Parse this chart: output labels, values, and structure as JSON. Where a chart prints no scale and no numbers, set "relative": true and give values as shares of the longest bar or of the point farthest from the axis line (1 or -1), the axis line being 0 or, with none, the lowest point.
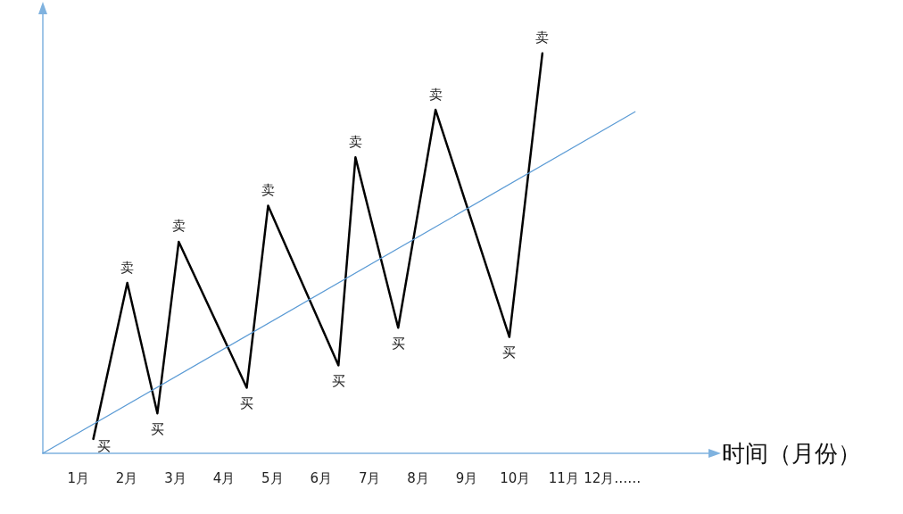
{
  "chart_data": {
    "type": "line",
    "relative": true,
    "xlabel": "时间（月份）",
    "xlim": [
      0.27,
      14
    ],
    "xticks": [
      {
        "value": 1,
        "label": "1月"
      },
      {
        "value": 2,
        "label": "2月"
      },
      {
        "value": 3,
        "label": "3月"
      },
      {
        "value": 4,
        "label": "4月"
      },
      {
        "value": 5,
        "label": "5月"
      },
      {
        "value": 6,
        "label": "6月"
      },
      {
        "value": 7,
        "label": "7月"
      },
      {
        "value": 8,
        "label": "8月"
      },
      {
        "value": 9,
        "label": "9月"
      },
      {
        "value": 10,
        "label": "10月"
      },
      {
        "value": 11,
        "label": "11月"
      },
      {
        "value": 12,
        "label": "12月……"
      }
    ],
    "series": [
      {
        "color": "#000000",
        "x": [
          1.31,
          2.01,
          2.63,
          3.07,
          4.47,
          4.91,
          6.36,
          6.71,
          7.59,
          8.36,
          9.88,
          10.56
        ],
        "values": [
          0.036,
          0.426,
          0.1,
          0.529,
          0.164,
          0.619,
          0.22,
          0.74,
          0.314,
          0.859,
          0.291,
          1
        ]
      },
      {
        "color": "#5b9bd5",
        "x": [
          0.27,
          12.47
        ],
        "values": [
          0,
          0.854
        ]
      }
    ],
    "annotations": [
      {
        "text": "买",
        "x": 1.31,
        "y": 0.036
      },
      {
        "text": "卖",
        "x": 2.01,
        "y": 0.426
      },
      {
        "text": "买",
        "x": 2.63,
        "y": 0.1
      },
      {
        "text": "卖",
        "x": 3.07,
        "y": 0.529
      },
      {
        "text": "买",
        "x": 4.47,
        "y": 0.164
      },
      {
        "text": "卖",
        "x": 4.91,
        "y": 0.619
      },
      {
        "text": "买",
        "x": 6.36,
        "y": 0.22
      },
      {
        "text": "卖",
        "x": 6.71,
        "y": 0.74
      },
      {
        "text": "买",
        "x": 7.59,
        "y": 0.314
      },
      {
        "text": "卖",
        "x": 8.36,
        "y": 0.859
      },
      {
        "text": "买",
        "x": 9.88,
        "y": 0.291
      },
      {
        "text": "卖",
        "x": 10.56,
        "y": 1
      }
    ],
    "tick_labels": "x",
    "grid": false,
    "line_style": "solid"
  }
}
